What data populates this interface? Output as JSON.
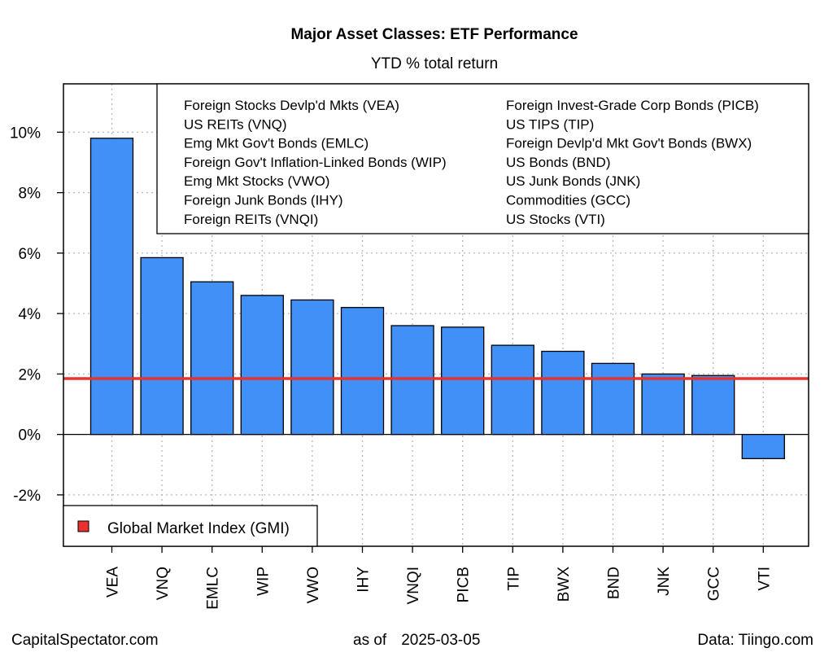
{
  "chart_data": {
    "type": "bar",
    "title": "Major Asset Classes: ETF Performance",
    "subtitle": "YTD % total return",
    "categories": [
      "VEA",
      "VNQ",
      "EMLC",
      "WIP",
      "VWO",
      "IHY",
      "VNQI",
      "PICB",
      "TIP",
      "BWX",
      "BND",
      "JNK",
      "GCC",
      "VTI"
    ],
    "values": [
      9.8,
      5.85,
      5.05,
      4.6,
      4.45,
      4.2,
      3.6,
      3.55,
      2.95,
      2.75,
      2.35,
      2.0,
      1.95,
      -0.8
    ],
    "y_ticks": [
      -2,
      0,
      2,
      4,
      6,
      8,
      10
    ],
    "y_tick_labels": [
      "-2%",
      "0%",
      "2%",
      "4%",
      "6%",
      "8%",
      "10%"
    ],
    "ylim": [
      -3.7,
      11.6
    ],
    "grid": true,
    "bar_color": "#4090f8",
    "reference_line": {
      "label": "Global Market Index (GMI)",
      "value": 1.85,
      "color": "#e8322e"
    },
    "legend_tickers": {
      "placement": "top-right",
      "columns": [
        [
          "Foreign Stocks Devlp'd Mkts (VEA)",
          "US REITs (VNQ)",
          "Emg Mkt Gov't Bonds (EMLC)",
          "Foreign Gov't Inflation-Linked Bonds (WIP)",
          "Emg Mkt Stocks (VWO)",
          "Foreign Junk Bonds (IHY)",
          "Foreign REITs (VNQI)"
        ],
        [
          "Foreign Invest-Grade Corp Bonds (PICB)",
          "US TIPS (TIP)",
          "Foreign Devlp'd Mkt Gov't Bonds (BWX)",
          "US Bonds (BND)",
          "US Junk Bonds (JNK)",
          "Commodities (GCC)",
          "US Stocks (VTI)"
        ]
      ]
    },
    "legend_gmi_placement": "bottom-left"
  },
  "footer": {
    "left": "CapitalSpectator.com",
    "as_of_label": "as of",
    "as_of_date": "2025-03-05",
    "right": "Data: Tiingo.com"
  }
}
